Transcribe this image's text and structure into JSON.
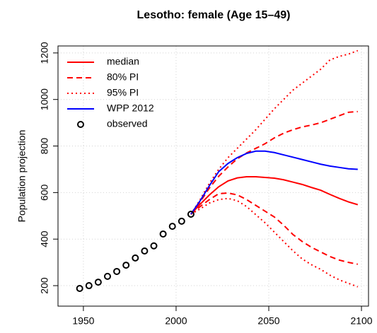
{
  "chart_data": {
    "type": "line",
    "title": "Lesotho: female (Age 15–49)",
    "y_label": "Population projection",
    "xlim": [
      1936.3,
      2103.8
    ],
    "ylim": [
      112,
      1230
    ],
    "xticks": [
      1950,
      2000,
      2050,
      2100
    ],
    "yticks": [
      200,
      400,
      600,
      800,
      1000,
      1200
    ],
    "grid": true,
    "legend": "top-left",
    "x": [
      2008,
      2013,
      2018,
      2023,
      2028,
      2033,
      2038,
      2043,
      2048,
      2053,
      2058,
      2063,
      2068,
      2073,
      2078,
      2083,
      2088,
      2093,
      2098
    ],
    "series": [
      {
        "name": "median",
        "color": "#ff0000",
        "style": "solid",
        "values": [
          507,
          550,
          590,
          625,
          650,
          663,
          668,
          668,
          665,
          662,
          655,
          645,
          635,
          622,
          610,
          592,
          575,
          560,
          548
        ]
      },
      {
        "name": "80% PI",
        "color": "#ff0000",
        "style": "dashed",
        "upper": [
          507,
          560,
          620,
          670,
          710,
          745,
          770,
          790,
          810,
          835,
          855,
          870,
          882,
          890,
          900,
          915,
          930,
          945,
          948
        ],
        "lower": [
          507,
          540,
          570,
          595,
          598,
          590,
          570,
          545,
          520,
          495,
          460,
          420,
          390,
          365,
          345,
          325,
          310,
          300,
          292
        ]
      },
      {
        "name": "95% PI",
        "color": "#ff0000",
        "style": "dotted",
        "upper": [
          507,
          570,
          640,
          700,
          750,
          790,
          830,
          870,
          915,
          960,
          1000,
          1040,
          1070,
          1100,
          1130,
          1170,
          1185,
          1195,
          1210
        ],
        "lower": [
          507,
          530,
          555,
          570,
          575,
          565,
          540,
          505,
          470,
          430,
          390,
          350,
          315,
          290,
          270,
          245,
          225,
          210,
          195
        ]
      },
      {
        "name": "WPP 2012",
        "color": "#0000ff",
        "style": "solid",
        "values": [
          507,
          565,
          630,
          690,
          725,
          750,
          768,
          778,
          778,
          772,
          762,
          752,
          742,
          732,
          722,
          714,
          708,
          702,
          700
        ]
      }
    ],
    "observed": {
      "name": "observed",
      "color": "#000000",
      "x": [
        1948,
        1953,
        1958,
        1963,
        1968,
        1973,
        1978,
        1983,
        1988,
        1993,
        1998,
        2003,
        2008
      ],
      "values": [
        188,
        200,
        215,
        240,
        261,
        288,
        319,
        349,
        371,
        422,
        455,
        477,
        507
      ]
    }
  }
}
